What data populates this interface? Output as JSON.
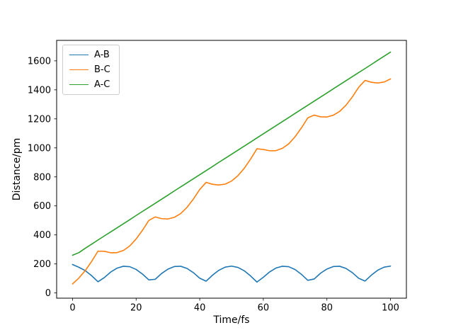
{
  "figure": {
    "background": "#ffffff"
  },
  "chart_data": {
    "type": "line",
    "title": "",
    "xlabel": "Time/fs",
    "ylabel": "Distance/pm",
    "xlim": [
      -5,
      105
    ],
    "ylim": [
      -36,
      1741
    ],
    "xticks": [
      0,
      20,
      40,
      60,
      80,
      100
    ],
    "yticks": [
      0,
      200,
      400,
      600,
      800,
      1000,
      1200,
      1400,
      1600
    ],
    "grid": false,
    "legend_position": "upper-left",
    "x": [
      0,
      2,
      4,
      6,
      8,
      10,
      12,
      14,
      16,
      18,
      20,
      22,
      24,
      26,
      28,
      30,
      32,
      34,
      36,
      38,
      40,
      42,
      44,
      46,
      48,
      50,
      52,
      54,
      56,
      58,
      60,
      62,
      64,
      66,
      68,
      70,
      72,
      74,
      76,
      78,
      80,
      82,
      84,
      86,
      88,
      90,
      92,
      94,
      96,
      98,
      100
    ],
    "series": [
      {
        "name": "A-B",
        "color": "#1f77b4",
        "values": [
          196,
          177,
          154,
          119,
          77,
          106,
          144,
          171,
          184,
          181,
          162,
          130,
          90,
          94,
          134,
          164,
          182,
          184,
          169,
          140,
          102,
          81,
          122,
          156,
          178,
          185,
          176,
          153,
          117,
          75,
          108,
          145,
          172,
          184,
          181,
          161,
          128,
          87,
          96,
          136,
          165,
          182,
          184,
          169,
          140,
          101,
          82,
          123,
          157,
          178,
          185
        ]
      },
      {
        "name": "B-C",
        "color": "#ff7f0e",
        "values": [
          62,
          103,
          154,
          217,
          288,
          287,
          277,
          278,
          293,
          324,
          372,
          432,
          500,
          524,
          512,
          510,
          521,
          547,
          590,
          647,
          713,
          762,
          749,
          744,
          750,
          771,
          808,
          859,
          923,
          994,
          989,
          980,
          981,
          997,
          1028,
          1077,
          1138,
          1207,
          1226,
          1214,
          1213,
          1225,
          1251,
          1294,
          1351,
          1418,
          1465,
          1452,
          1447,
          1454,
          1475
        ]
      },
      {
        "name": "A-C",
        "color": "#2ca02c",
        "values": [
          260,
          278,
          308,
          336,
          365,
          393,
          421,
          449,
          477,
          505,
          534,
          562,
          590,
          618,
          646,
          674,
          703,
          731,
          759,
          787,
          815,
          843,
          871,
          900,
          928,
          956,
          984,
          1012,
          1040,
          1069,
          1097,
          1125,
          1153,
          1181,
          1209,
          1238,
          1266,
          1294,
          1322,
          1350,
          1378,
          1407,
          1435,
          1463,
          1491,
          1519,
          1547,
          1575,
          1604,
          1632,
          1660
        ]
      }
    ]
  }
}
